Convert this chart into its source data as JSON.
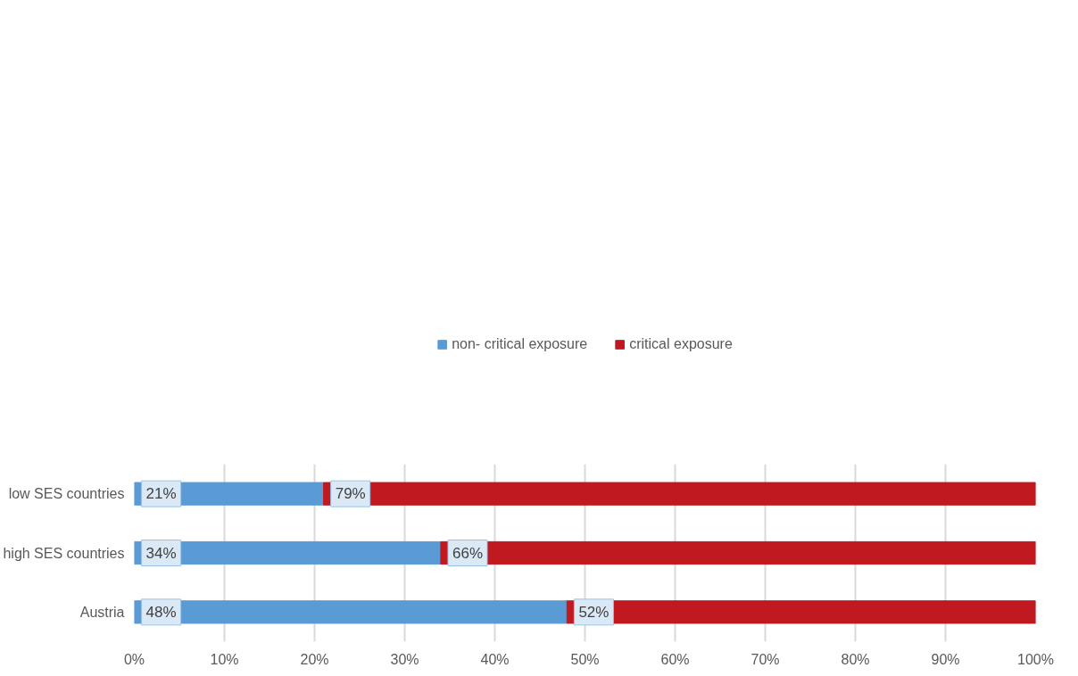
{
  "chart_data": {
    "type": "bar",
    "orientation": "horizontal",
    "stacked": true,
    "categories": [
      "low SES countries",
      "high SES countries",
      "Austria"
    ],
    "series": [
      {
        "name": "non- critical exposure",
        "color": "#5b9bd5",
        "values": [
          21,
          34,
          48
        ],
        "value_labels": [
          "21%",
          "34%",
          "48%"
        ]
      },
      {
        "name": "critical exposure",
        "color": "#c0191f",
        "values": [
          79,
          66,
          52
        ],
        "value_labels": [
          "79%",
          "66%",
          "52%"
        ]
      }
    ],
    "xlim": [
      0,
      100
    ],
    "xticks": [
      {
        "value": 0,
        "label": "0%"
      },
      {
        "value": 10,
        "label": "10%"
      },
      {
        "value": 20,
        "label": "20%"
      },
      {
        "value": 30,
        "label": "30%"
      },
      {
        "value": 40,
        "label": "40%"
      },
      {
        "value": 50,
        "label": "50%"
      },
      {
        "value": 60,
        "label": "60%"
      },
      {
        "value": 70,
        "label": "70%"
      },
      {
        "value": 80,
        "label": "80%"
      },
      {
        "value": 90,
        "label": "90%"
      },
      {
        "value": 100,
        "label": "100%"
      }
    ],
    "grid": "x",
    "legend": "top"
  }
}
